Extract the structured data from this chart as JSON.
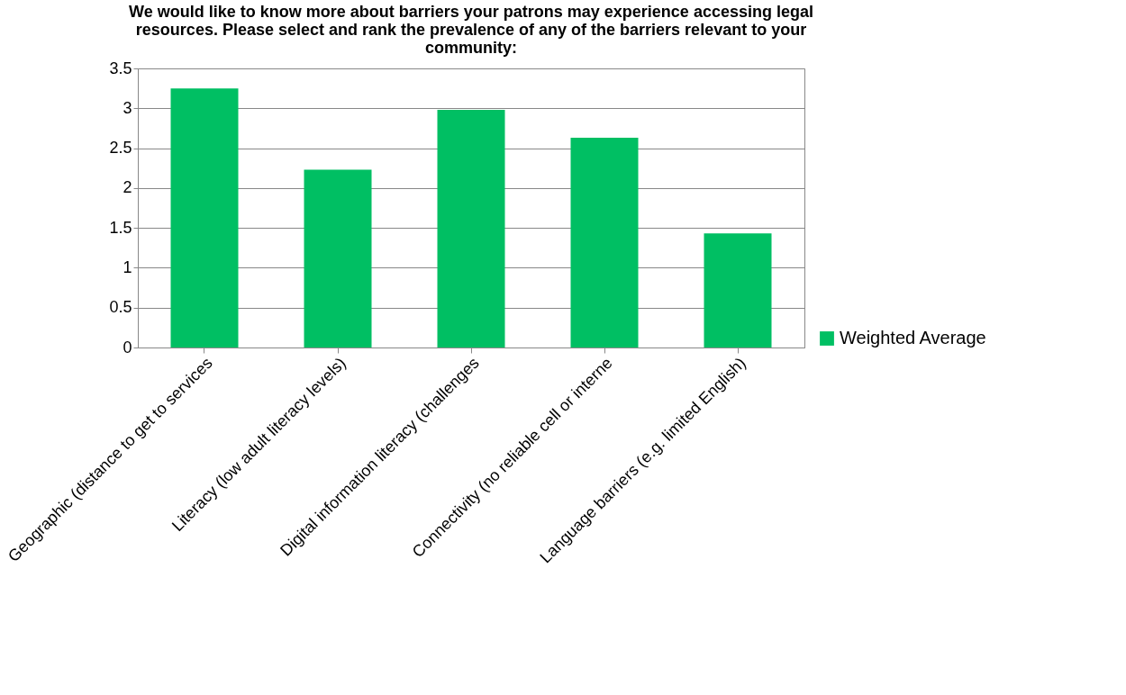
{
  "chart_data": {
    "type": "bar",
    "title": [
      "We would like to know more about barriers your patrons may experience accessing legal",
      "resources. Please select and rank the prevalence of any of the barriers relevant to your",
      "community:"
    ],
    "categories": [
      "Geographic (distance to get to services",
      "Literacy (low adult literacy levels)",
      "Digital information literacy (challenges",
      "Connectivity (no reliable cell or interne",
      "Language barriers (e.g. limited English)"
    ],
    "series": [
      {
        "name": "Weighted Average",
        "color": "#00bf63",
        "values": [
          3.25,
          2.23,
          2.98,
          2.63,
          1.43
        ]
      }
    ],
    "ylim": [
      0,
      3.5
    ],
    "yticks": [
      0,
      0.5,
      1,
      1.5,
      2,
      2.5,
      3,
      3.5
    ],
    "grid": "y",
    "legend": "right"
  }
}
